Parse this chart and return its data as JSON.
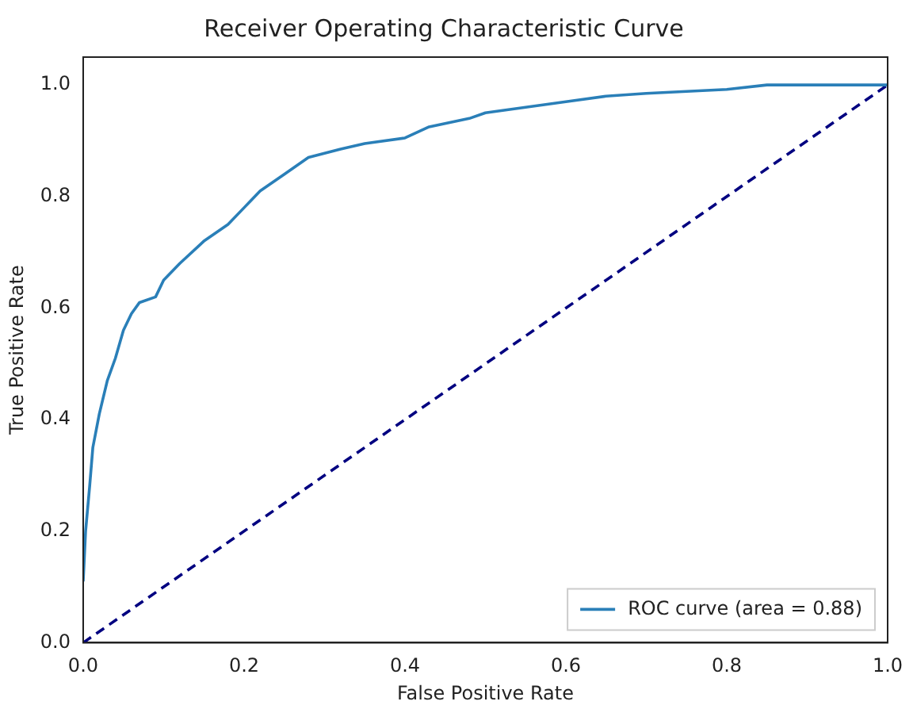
{
  "chart_data": {
    "type": "line",
    "title": "Receiver Operating Characteristic Curve",
    "xlabel": "False Positive Rate",
    "ylabel": "True Positive Rate",
    "xlim": [
      0,
      1
    ],
    "ylim": [
      0,
      1.05
    ],
    "xticks": [
      {
        "value": 0,
        "label": "0.0"
      },
      {
        "value": 0.2,
        "label": "0.2"
      },
      {
        "value": 0.4,
        "label": "0.4"
      },
      {
        "value": 0.6,
        "label": "0.6"
      },
      {
        "value": 0.8,
        "label": "0.8"
      },
      {
        "value": 1,
        "label": "1.0"
      }
    ],
    "yticks": [
      {
        "value": 0,
        "label": "0.0"
      },
      {
        "value": 0.2,
        "label": "0.2"
      },
      {
        "value": 0.4,
        "label": "0.4"
      },
      {
        "value": 0.6,
        "label": "0.6"
      },
      {
        "value": 0.8,
        "label": "0.8"
      },
      {
        "value": 1,
        "label": "1.0"
      }
    ],
    "grid": false,
    "legend": "bottom right",
    "marker": "none",
    "series": [
      {
        "name": "ROC curve (area = 0.88)",
        "color": "#2a7fb8",
        "line_style": "solid",
        "x": [
          0,
          0.003,
          0.008,
          0.012,
          0.02,
          0.03,
          0.04,
          0.05,
          0.06,
          0.07,
          0.09,
          0.1,
          0.12,
          0.15,
          0.18,
          0.2,
          0.22,
          0.25,
          0.28,
          0.32,
          0.35,
          0.4,
          0.43,
          0.48,
          0.5,
          0.55,
          0.6,
          0.65,
          0.7,
          0.8,
          0.85,
          1
        ],
        "values": [
          0.11,
          0.2,
          0.28,
          0.35,
          0.41,
          0.47,
          0.51,
          0.56,
          0.59,
          0.61,
          0.62,
          0.65,
          0.68,
          0.72,
          0.75,
          0.78,
          0.81,
          0.84,
          0.87,
          0.885,
          0.895,
          0.905,
          0.925,
          0.94,
          0.95,
          0.96,
          0.97,
          0.98,
          0.985,
          0.992,
          1,
          1
        ]
      },
      {
        "color": "#000080",
        "line_style": "dashed",
        "x": [
          0,
          1
        ],
        "values": [
          0,
          1
        ]
      }
    ]
  }
}
